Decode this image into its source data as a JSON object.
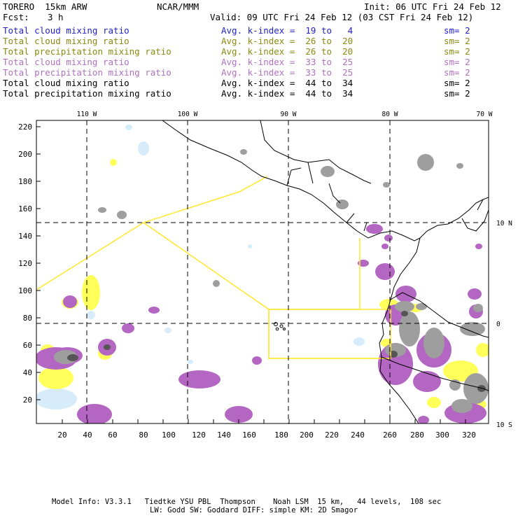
{
  "header": {
    "model": "TORERO  15km ARW",
    "org": "NCAR/MMM",
    "init": "Init: 06 UTC Fri 24 Feb 12",
    "fcst_label": "Fcst:",
    "fcst_value": "3 h",
    "valid": "Valid: 09 UTC Fri 24 Feb 12 (03 CST Fri 24 Feb 12)"
  },
  "legend": [
    {
      "field": "Total cloud mixing ratio",
      "index": "Avg. k-index =  19 to   4",
      "sm": "sm= 2",
      "color": "#2222cc"
    },
    {
      "field": "Total cloud mixing ratio",
      "index": "Avg. k-index =  26 to  20",
      "sm": "sm= 2",
      "color": "#8a8a10"
    },
    {
      "field": "Total precipitation mixing ratio",
      "index": "Avg. k-index =  26 to  20",
      "sm": "sm= 2",
      "color": "#8a8a10"
    },
    {
      "field": "Total cloud mixing ratio",
      "index": "Avg. k-index =  33 to  25",
      "sm": "sm= 2",
      "color": "#b070c0"
    },
    {
      "field": "Total precipitation mixing ratio",
      "index": "Avg. k-index =  33 to  25",
      "sm": "sm= 2",
      "color": "#b070c0"
    },
    {
      "field": "Total cloud mixing ratio",
      "index": "Avg. k-index =  44 to  34",
      "sm": "sm= 2",
      "color": "#000000"
    },
    {
      "field": "Total precipitation mixing ratio",
      "index": "Avg. k-index =  44 to  34",
      "sm": "sm= 2",
      "color": "#000000"
    }
  ],
  "map": {
    "lon_labels": [
      "110 W",
      "100 W",
      "90 W",
      "80 W",
      "70 W"
    ],
    "lat_labels": [
      "10 N",
      "0",
      "10 S"
    ],
    "x_ticks": [
      "20",
      "40",
      "60",
      "80",
      "100",
      "120",
      "140",
      "160",
      "180",
      "200",
      "220",
      "240",
      "260",
      "280",
      "300",
      "320"
    ],
    "y_ticks": [
      "220",
      "200",
      "180",
      "160",
      "140",
      "120",
      "100",
      "80",
      "60",
      "40",
      "20"
    ],
    "colors": {
      "light_blue": "#d6ecfa",
      "yellow": "#ffff5a",
      "purple": "#b366c2",
      "gray": "#9e9e9e",
      "dark_gray": "#555555",
      "box_line": "#ffe838"
    }
  },
  "footer": {
    "line1": "Model Info: V3.3.1   Tiedtke YSU PBL  Thompson    Noah LSM  15 km,   44 levels,  108 sec",
    "line2": "LW: Godd SW: Goddard DIFF: simple KM: 2D Smagor"
  }
}
